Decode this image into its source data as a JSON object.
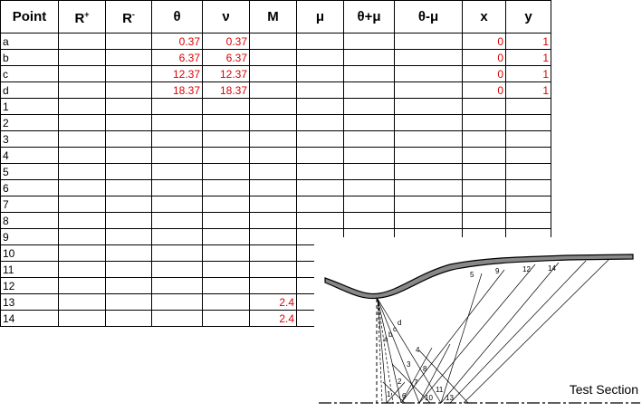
{
  "table": {
    "headers": [
      {
        "main": "Point",
        "sup": ""
      },
      {
        "main": "R",
        "sup": "+"
      },
      {
        "main": "R",
        "sup": "-"
      },
      {
        "main": "θ",
        "sup": ""
      },
      {
        "main": "ν",
        "sup": ""
      },
      {
        "main": "M",
        "sup": ""
      },
      {
        "main": "μ",
        "sup": ""
      },
      {
        "main": "θ+μ",
        "sup": ""
      },
      {
        "main": "θ-μ",
        "sup": ""
      },
      {
        "main": "x",
        "sup": ""
      },
      {
        "main": "y",
        "sup": ""
      }
    ],
    "rows": [
      [
        "a",
        "",
        "",
        "0.37",
        "0.37",
        "",
        "",
        "",
        "",
        "0",
        "1"
      ],
      [
        "b",
        "",
        "",
        "6.37",
        "6.37",
        "",
        "",
        "",
        "",
        "0",
        "1"
      ],
      [
        "c",
        "",
        "",
        "12.37",
        "12.37",
        "",
        "",
        "",
        "",
        "0",
        "1"
      ],
      [
        "d",
        "",
        "",
        "18.37",
        "18.37",
        "",
        "",
        "",
        "",
        "0",
        "1"
      ],
      [
        "1",
        "",
        "",
        "",
        "",
        "",
        "",
        "",
        "",
        "",
        ""
      ],
      [
        "2",
        "",
        "",
        "",
        "",
        "",
        "",
        "",
        "",
        "",
        ""
      ],
      [
        "3",
        "",
        "",
        "",
        "",
        "",
        "",
        "",
        "",
        "",
        ""
      ],
      [
        "4",
        "",
        "",
        "",
        "",
        "",
        "",
        "",
        "",
        "",
        ""
      ],
      [
        "5",
        "",
        "",
        "",
        "",
        "",
        "",
        "",
        "",
        "",
        ""
      ],
      [
        "6",
        "",
        "",
        "",
        "",
        "",
        "",
        "",
        "",
        "",
        ""
      ],
      [
        "7",
        "",
        "",
        "",
        "",
        "",
        "",
        "",
        "",
        "",
        ""
      ],
      [
        "8",
        "",
        "",
        "",
        "",
        "",
        "",
        "",
        "",
        "",
        ""
      ],
      [
        "9",
        "",
        "",
        "",
        "",
        "",
        "",
        "",
        "",
        "",
        ""
      ],
      [
        "10",
        "",
        "",
        "",
        "",
        "",
        "",
        "",
        "",
        "",
        ""
      ],
      [
        "11",
        "",
        "",
        "",
        "",
        "",
        "",
        "",
        "",
        "",
        ""
      ],
      [
        "12",
        "",
        "",
        "",
        "",
        "",
        "",
        "",
        "",
        "",
        ""
      ],
      [
        "13",
        "",
        "",
        "",
        "",
        "2.4",
        "",
        "",
        "",
        "",
        ""
      ],
      [
        "14",
        "",
        "",
        "",
        "",
        "2.4",
        "",
        "",
        "",
        "",
        ""
      ]
    ]
  },
  "diagram": {
    "caption": "Test Section",
    "wall_labels": [
      "5",
      "9",
      "12",
      "14"
    ],
    "fan_labels": [
      "a",
      "b",
      "c",
      "d"
    ],
    "mesh_labels": [
      "4",
      "3",
      "8",
      "2",
      "7",
      "11",
      "1",
      "6",
      "10",
      "13"
    ]
  },
  "colors": {
    "value_text": "#e00000",
    "grid": "#000000"
  }
}
